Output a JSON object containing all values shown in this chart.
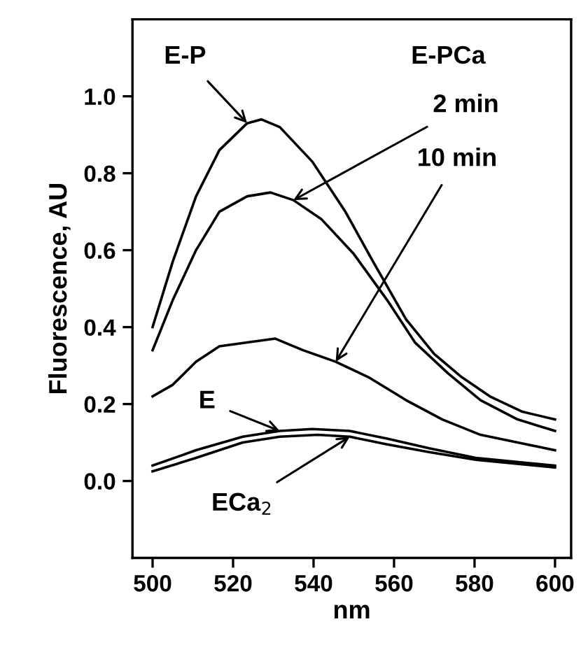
{
  "chart_data": {
    "type": "line",
    "xlabel": "nm",
    "ylabel": "Fluorescence, AU",
    "xlim": [
      495,
      604
    ],
    "ylim": [
      -0.2,
      1.2
    ],
    "xticks": [
      500,
      520,
      540,
      560,
      580,
      600
    ],
    "yticks": [
      {
        "value": 0.0,
        "label": "0.0"
      },
      {
        "value": 0.2,
        "label": "0.2"
      },
      {
        "value": 0.4,
        "label": "0.4"
      },
      {
        "value": 0.6,
        "label": "0.6"
      },
      {
        "value": 0.8,
        "label": "0.8"
      },
      {
        "value": 1.0,
        "label": "1.0"
      }
    ],
    "grid": false,
    "legend": false,
    "marker": "none",
    "line_style": "solid",
    "series": [
      {
        "color": "#000000",
        "x": [
          500,
          505,
          510.8,
          516.6,
          523.5,
          527,
          531.6,
          539.7,
          547.9,
          554.8,
          563,
          570,
          576.8,
          583.8,
          591.9,
          600
        ],
        "values": [
          0.4,
          0.57,
          0.74,
          0.86,
          0.93,
          0.94,
          0.92,
          0.83,
          0.7,
          0.57,
          0.42,
          0.33,
          0.27,
          0.22,
          0.18,
          0.16
        ]
      },
      {
        "color": "#000000",
        "x": [
          500,
          505,
          510.8,
          516.6,
          523.5,
          529.3,
          535,
          542,
          550,
          558.3,
          565.2,
          573.4,
          581.5,
          590.7,
          600
        ],
        "values": [
          0.34,
          0.47,
          0.6,
          0.7,
          0.74,
          0.75,
          0.73,
          0.68,
          0.59,
          0.47,
          0.36,
          0.28,
          0.21,
          0.16,
          0.13
        ]
      },
      {
        "color": "#000000",
        "x": [
          500,
          505,
          510.8,
          516.6,
          523.5,
          530.5,
          537.4,
          545.5,
          553.6,
          563,
          572,
          581.5,
          590.7,
          600
        ],
        "values": [
          0.22,
          0.25,
          0.31,
          0.35,
          0.36,
          0.37,
          0.34,
          0.31,
          0.27,
          0.21,
          0.16,
          0.12,
          0.1,
          0.08
        ]
      },
      {
        "color": "#000000",
        "x": [
          500,
          510.8,
          522.4,
          531.6,
          539.7,
          549,
          558.3,
          568.7,
          580.3,
          600
        ],
        "values": [
          0.04,
          0.08,
          0.115,
          0.13,
          0.135,
          0.13,
          0.11,
          0.085,
          0.06,
          0.04
        ]
      },
      {
        "color": "#000000",
        "x": [
          500,
          510.8,
          522.4,
          531.6,
          541,
          549,
          558.3,
          568.7,
          580.3,
          600
        ],
        "values": [
          0.025,
          0.06,
          0.1,
          0.115,
          0.12,
          0.115,
          0.095,
          0.075,
          0.055,
          0.035
        ]
      }
    ],
    "annotations": [
      {
        "text": "E-P",
        "x": 523.5,
        "y": 0.93
      },
      "E-PCa",
      {
        "text": "2 min",
        "x": 535,
        "y": 0.73
      },
      {
        "text": "10 min",
        "x": 545.5,
        "y": 0.31
      },
      {
        "text": "E",
        "x": 531.6,
        "y": 0.13
      },
      {
        "text": "ECa$_{2}$",
        "x": 549,
        "y": 0.115
      }
    ]
  }
}
